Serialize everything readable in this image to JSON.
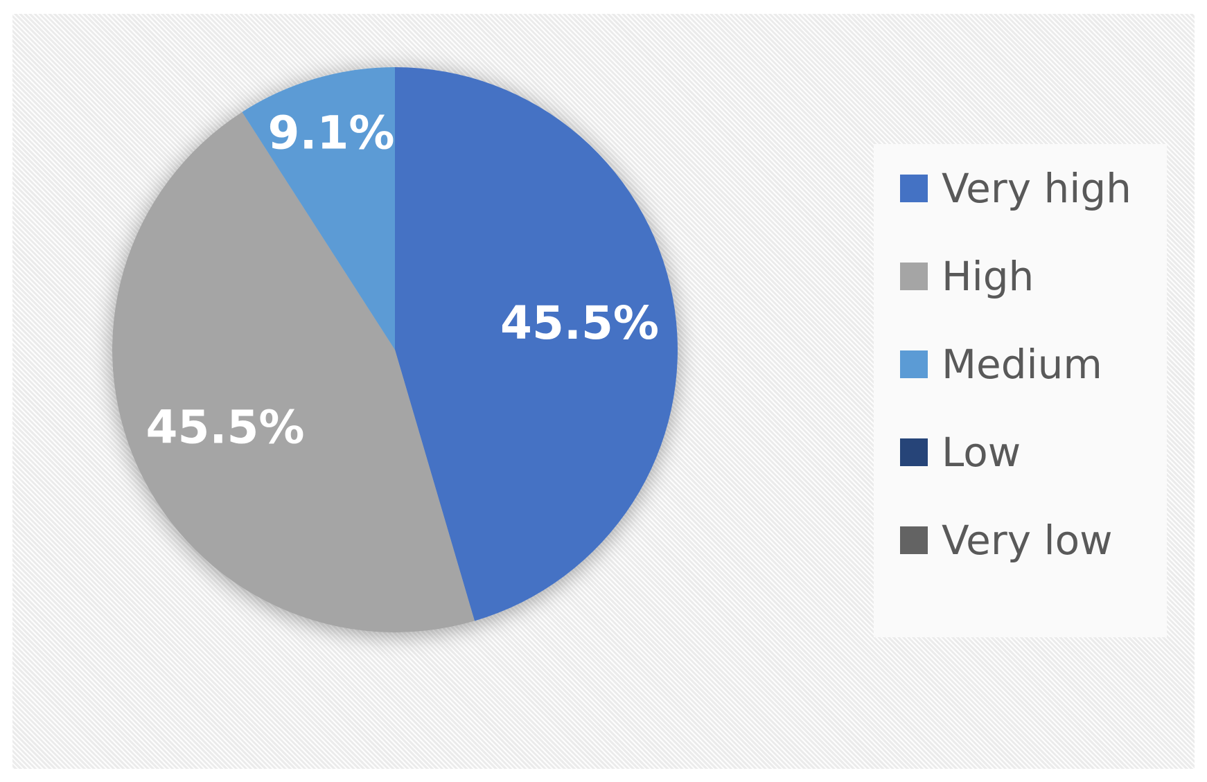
{
  "chart_data": {
    "type": "pie",
    "title": "",
    "legend_position": "right",
    "slices": [
      {
        "name": "Very high",
        "value": 45.5,
        "label": "45.5%",
        "color": "#4472c4"
      },
      {
        "name": "High",
        "value": 45.5,
        "label": "45.5%",
        "color": "#a5a5a5"
      },
      {
        "name": "Medium",
        "value": 9.1,
        "label": "9.1%",
        "color": "#5b9bd5"
      },
      {
        "name": "Low",
        "value": 0,
        "label": "",
        "color": "#264478"
      },
      {
        "name": "Very low",
        "value": 0,
        "label": "",
        "color": "#636363"
      }
    ]
  }
}
